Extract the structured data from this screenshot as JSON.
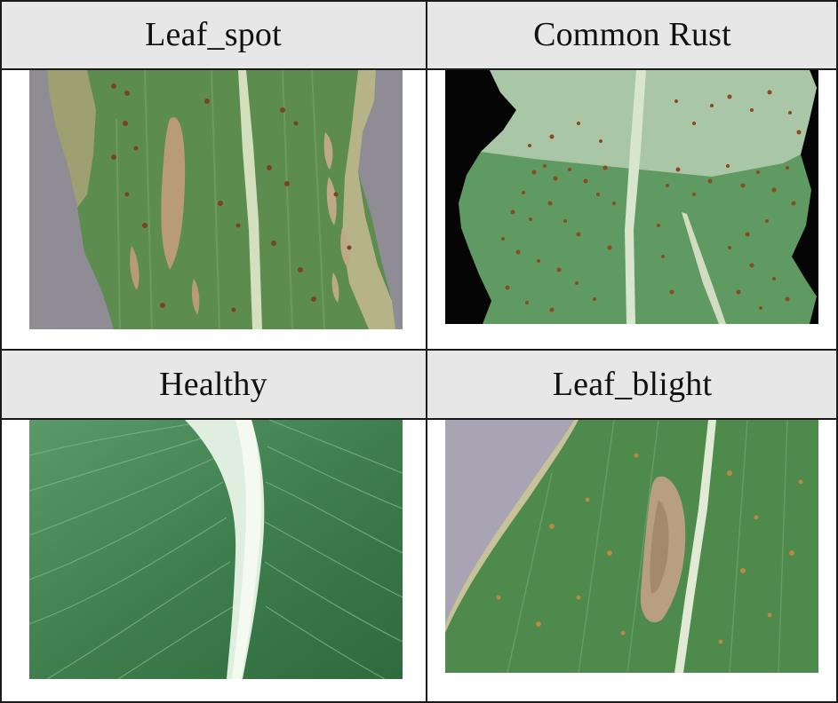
{
  "table": {
    "cells": [
      {
        "label": "Leaf_spot",
        "image": "leaf-spot-image",
        "background": "#8c8a95"
      },
      {
        "label": "Common Rust",
        "image": "common-rust-image",
        "background": "#050505"
      },
      {
        "label": "Healthy",
        "image": "healthy-leaf-image",
        "background": "#3e7a4a"
      },
      {
        "label": "Leaf_blight",
        "image": "leaf-blight-image",
        "background": "#a7a3b2"
      }
    ]
  },
  "colors": {
    "header_bg": "#e7e7e7",
    "border": "#1a1a1a",
    "leaf_green": "#4d8a4c",
    "lesion_tan": "#b8a179",
    "rust_spot": "#8c4a22"
  }
}
